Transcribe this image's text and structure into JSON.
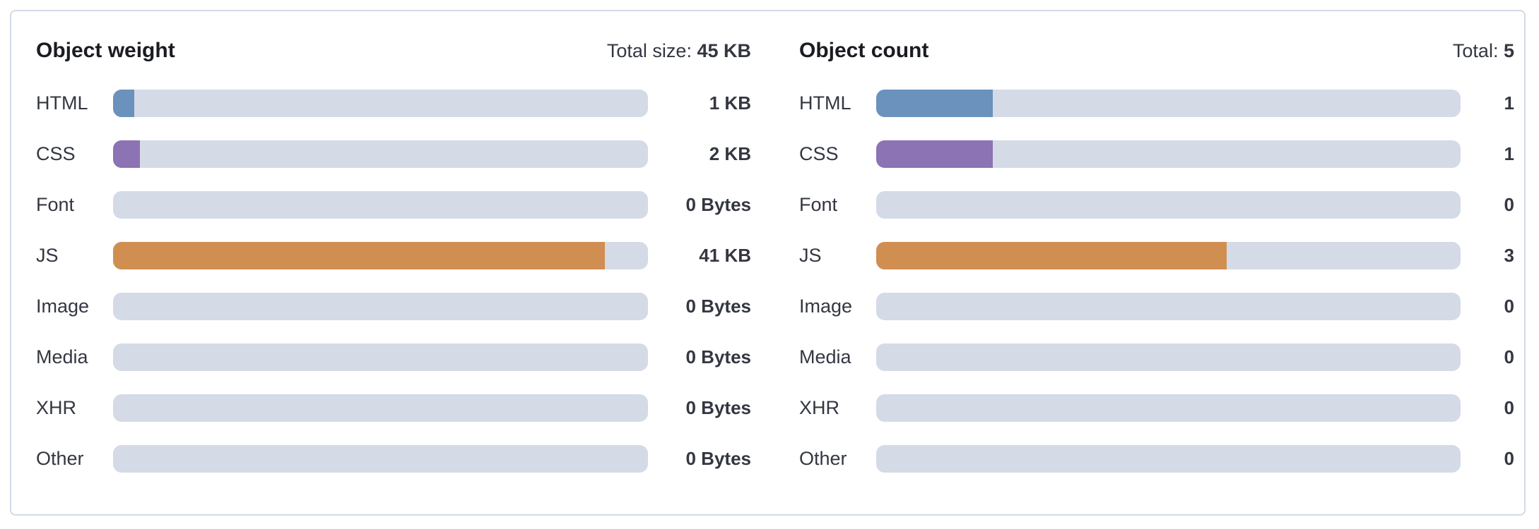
{
  "colors": {
    "HTML": "#6b91bd",
    "CSS": "#8c73b3",
    "JS": "#d08e51",
    "track": "#d4dae6"
  },
  "weight": {
    "title": "Object weight",
    "total_label": "Total size:",
    "total_value": "45 KB",
    "rows": [
      {
        "label": "HTML",
        "value": "1 KB",
        "fraction": 0.04
      },
      {
        "label": "CSS",
        "value": "2 KB",
        "fraction": 0.05
      },
      {
        "label": "Font",
        "value": "0 Bytes",
        "fraction": 0
      },
      {
        "label": "JS",
        "value": "41 KB",
        "fraction": 0.92
      },
      {
        "label": "Image",
        "value": "0 Bytes",
        "fraction": 0
      },
      {
        "label": "Media",
        "value": "0 Bytes",
        "fraction": 0
      },
      {
        "label": "XHR",
        "value": "0 Bytes",
        "fraction": 0
      },
      {
        "label": "Other",
        "value": "0 Bytes",
        "fraction": 0
      }
    ]
  },
  "count": {
    "title": "Object count",
    "total_label": "Total:",
    "total_value": "5",
    "rows": [
      {
        "label": "HTML",
        "value": "1",
        "fraction": 0.2
      },
      {
        "label": "CSS",
        "value": "1",
        "fraction": 0.2
      },
      {
        "label": "Font",
        "value": "0",
        "fraction": 0
      },
      {
        "label": "JS",
        "value": "3",
        "fraction": 0.6
      },
      {
        "label": "Image",
        "value": "0",
        "fraction": 0
      },
      {
        "label": "Media",
        "value": "0",
        "fraction": 0
      },
      {
        "label": "XHR",
        "value": "0",
        "fraction": 0
      },
      {
        "label": "Other",
        "value": "0",
        "fraction": 0
      }
    ]
  }
}
